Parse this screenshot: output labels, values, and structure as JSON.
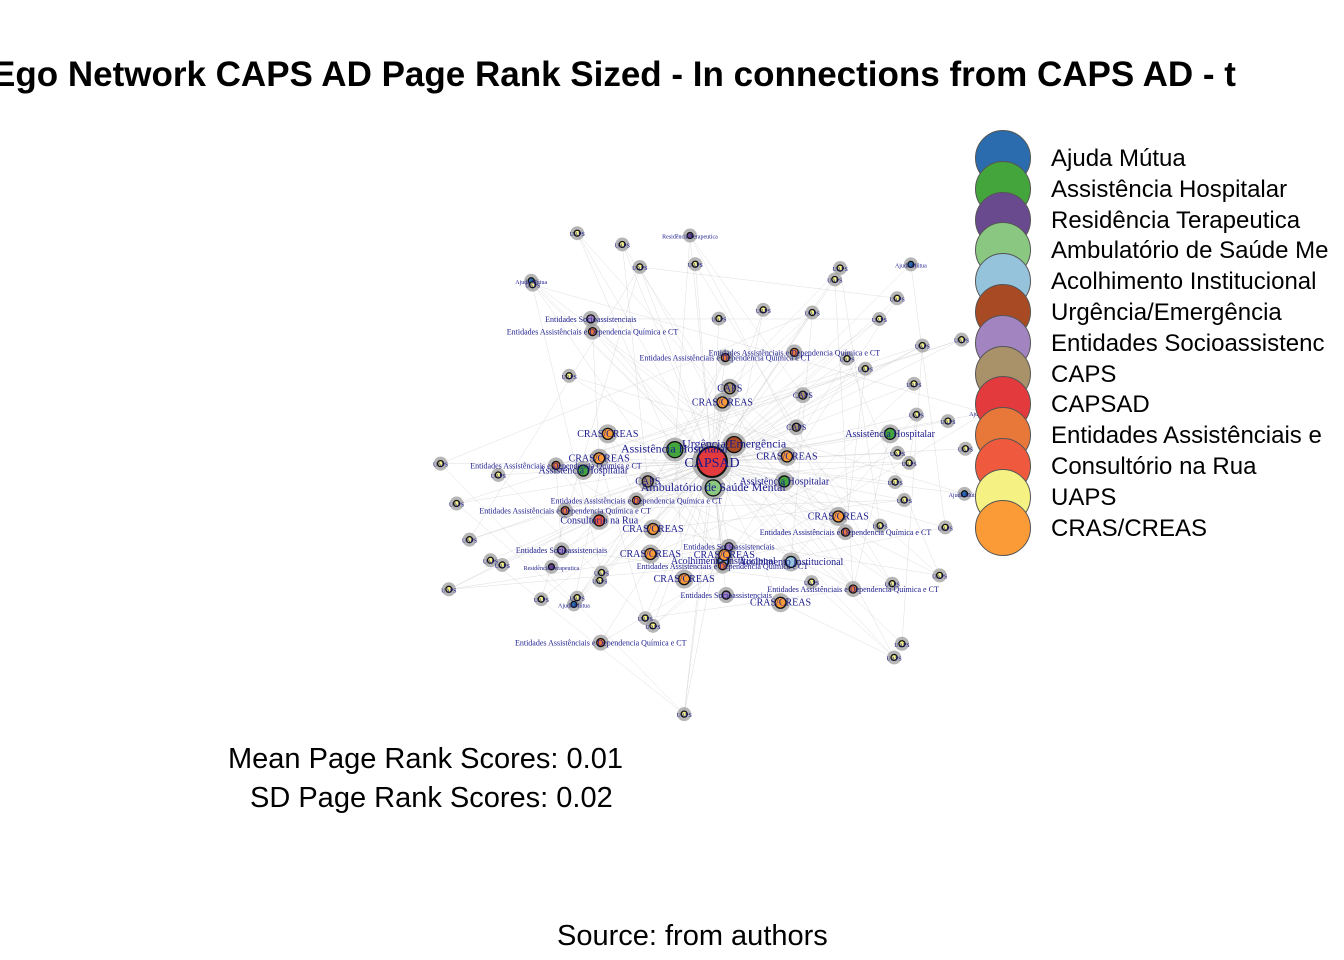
{
  "title": "Ego Network CAPS AD Page Rank Sized - In connections from CAPS AD - t",
  "legend": [
    {
      "label": "Ajuda Mútua",
      "color": "#2b6cae"
    },
    {
      "label": "Assistência Hospitalar",
      "color": "#43a53c"
    },
    {
      "label": "Residência Terapeutica",
      "color": "#6a4a8f"
    },
    {
      "label": "Ambulatório de Saúde Me",
      "color": "#8ac882"
    },
    {
      "label": "Acolhimento Institucional",
      "color": "#95c3dc"
    },
    {
      "label": "Urgência/Emergência",
      "color": "#a84b25"
    },
    {
      "label": "Entidades Socioassistenc",
      "color": "#a285c0"
    },
    {
      "label": "CAPS",
      "color": "#a9916a"
    },
    {
      "label": "CAPSAD",
      "color": "#e33a3e"
    },
    {
      "label": "Entidades Assistênciais e",
      "color": "#e8773a"
    },
    {
      "label": "Consultório na Rua",
      "color": "#ef5a3e"
    },
    {
      "label": "UAPS",
      "color": "#f5f283"
    },
    {
      "label": "CRAS/CREAS",
      "color": "#fb9b38"
    }
  ],
  "stats": {
    "mean": "Mean Page Rank Scores: 0.01",
    "sd": "SD Page Rank Scores: 0.02"
  },
  "caption": "Source: from authors",
  "network": {
    "center": {
      "label": "CAPSAD",
      "color": "#e33a3e"
    },
    "nodes": [
      {
        "label": "Assistência Hospitalar",
        "color": "#43a53c",
        "size": 6
      },
      {
        "label": "Ambulatório de Saúde Mental",
        "color": "#8ac882",
        "size": 6
      },
      {
        "label": "CRAS/CREAS",
        "color": "#fb9b38",
        "size": 4
      },
      {
        "label": "Urgência/Emergência",
        "color": "#a84b25",
        "size": 5
      },
      {
        "label": "Consultório na Rua",
        "color": "#ef5a3e",
        "size": 3
      },
      {
        "label": "CAPS",
        "color": "#a9916a",
        "size": 3
      },
      {
        "label": "CRAS/CREAS",
        "color": "#fb9b38",
        "size": 3
      },
      {
        "label": "Acolhimento Institucional",
        "color": "#95c3dc",
        "size": 3
      },
      {
        "label": "Acolhimento Institucional",
        "color": "#95c3dc",
        "size": 3
      },
      {
        "label": "Assistência Hospitalar",
        "color": "#43a53c",
        "size": 3
      },
      {
        "label": "Assistência Hospitalar",
        "color": "#43a53c",
        "size": 3
      },
      {
        "label": "Assistência Hospitalar",
        "color": "#43a53c",
        "size": 3
      },
      {
        "label": "CAPS",
        "color": "#a9916a",
        "size": 3
      },
      {
        "label": "CRAS/CREAS",
        "color": "#fb9b38",
        "size": 3
      },
      {
        "label": "CRAS/CREAS",
        "color": "#fb9b38",
        "size": 3
      },
      {
        "label": "CRAS/CREAS",
        "color": "#fb9b38",
        "size": 3
      },
      {
        "label": "CRAS/CREAS",
        "color": "#fb9b38",
        "size": 3
      },
      {
        "label": "CRAS/CREAS",
        "color": "#fb9b38",
        "size": 3
      },
      {
        "label": "CRAS/CREAS",
        "color": "#fb9b38",
        "size": 3
      },
      {
        "label": "CRAS/CREAS",
        "color": "#fb9b38",
        "size": 3
      },
      {
        "label": "CRAS/CREAS",
        "color": "#fb9b38",
        "size": 3
      },
      {
        "label": "CAPS",
        "color": "#a9916a",
        "size": 2
      },
      {
        "label": "CAPS",
        "color": "#a9916a",
        "size": 2
      },
      {
        "label": "Entidades Socioassistenciais",
        "color": "#a285c0",
        "size": 2
      },
      {
        "label": "Entidades Socioassistenciais",
        "color": "#a285c0",
        "size": 2
      },
      {
        "label": "Entidades Socioassistenciais",
        "color": "#a285c0",
        "size": 2
      },
      {
        "label": "Entidades Socioassistenciais",
        "color": "#a285c0",
        "size": 2
      },
      {
        "label": "Entidades Assistênciais e Dependencia Química e CT",
        "color": "#e8773a",
        "size": 2
      },
      {
        "label": "Entidades Assistênciais e Dependencia Química e CT",
        "color": "#e8773a",
        "size": 2
      },
      {
        "label": "Entidades Assistênciais e Dependencia Química e CT",
        "color": "#e8773a",
        "size": 2
      },
      {
        "label": "Entidades Assistênciais e Dependencia Química e CT",
        "color": "#e8773a",
        "size": 2
      },
      {
        "label": "Entidades Assistênciais e Dependencia Química e CT",
        "color": "#e8773a",
        "size": 2
      },
      {
        "label": "Entidades Assistênciais e Dependencia Química e CT",
        "color": "#e8773a",
        "size": 2
      },
      {
        "label": "Entidades Assistênciais e Dependencia Química e CT",
        "color": "#e8773a",
        "size": 2
      },
      {
        "label": "Entidades Assistênciais e Dependencia Química e CT",
        "color": "#e8773a",
        "size": 2
      },
      {
        "label": "Entidades Assistênciais e Dependencia Química e CT",
        "color": "#e8773a",
        "size": 2
      },
      {
        "label": "Entidades Assistênciais e Dependencia Química e CT",
        "color": "#e8773a",
        "size": 2
      },
      {
        "label": "Ajuda Mútua",
        "color": "#2b6cae",
        "size": 1
      },
      {
        "label": "Ajuda Mútua",
        "color": "#2b6cae",
        "size": 1
      },
      {
        "label": "Ajuda Mútua",
        "color": "#2b6cae",
        "size": 1
      },
      {
        "label": "Ajuda Mútua",
        "color": "#2b6cae",
        "size": 1
      },
      {
        "label": "Ajuda Mútua",
        "color": "#2b6cae",
        "size": 1
      },
      {
        "label": "Residência Terapeutica",
        "color": "#6a4a8f",
        "size": 1
      },
      {
        "label": "Residência Terapeutica",
        "color": "#6a4a8f",
        "size": 1
      },
      {
        "label": "UAPS",
        "color": "#f5f283",
        "size": 1
      },
      {
        "label": "UAPS",
        "color": "#f5f283",
        "size": 1
      },
      {
        "label": "UAPS",
        "color": "#f5f283",
        "size": 1
      },
      {
        "label": "UAPS",
        "color": "#f5f283",
        "size": 1
      },
      {
        "label": "UAPS",
        "color": "#f5f283",
        "size": 1
      },
      {
        "label": "UAPS",
        "color": "#f5f283",
        "size": 1
      },
      {
        "label": "UAPS",
        "color": "#f5f283",
        "size": 1
      },
      {
        "label": "UAPS",
        "color": "#f5f283",
        "size": 1
      },
      {
        "label": "UAPS",
        "color": "#f5f283",
        "size": 1
      },
      {
        "label": "UAPS",
        "color": "#f5f283",
        "size": 1
      },
      {
        "label": "UAPS",
        "color": "#f5f283",
        "size": 1
      },
      {
        "label": "UAPS",
        "color": "#f5f283",
        "size": 1
      },
      {
        "label": "UAPS",
        "color": "#f5f283",
        "size": 1
      },
      {
        "label": "UAPS",
        "color": "#f5f283",
        "size": 1
      },
      {
        "label": "UAPS",
        "color": "#f5f283",
        "size": 1
      },
      {
        "label": "UAPS",
        "color": "#f5f283",
        "size": 1
      },
      {
        "label": "UAPS",
        "color": "#f5f283",
        "size": 1
      },
      {
        "label": "UAPS",
        "color": "#f5f283",
        "size": 1
      },
      {
        "label": "UAPS",
        "color": "#f5f283",
        "size": 1
      },
      {
        "label": "UAPS",
        "color": "#f5f283",
        "size": 1
      },
      {
        "label": "UAPS",
        "color": "#f5f283",
        "size": 1
      },
      {
        "label": "UAPS",
        "color": "#f5f283",
        "size": 1
      },
      {
        "label": "UAPS",
        "color": "#f5f283",
        "size": 1
      },
      {
        "label": "UAPS",
        "color": "#f5f283",
        "size": 1
      },
      {
        "label": "UAPS",
        "color": "#f5f283",
        "size": 1
      },
      {
        "label": "UAPS",
        "color": "#f5f283",
        "size": 1
      },
      {
        "label": "UAPS",
        "color": "#f5f283",
        "size": 1
      },
      {
        "label": "UAPS",
        "color": "#f5f283",
        "size": 1
      },
      {
        "label": "UAPS",
        "color": "#f5f283",
        "size": 1
      },
      {
        "label": "UAPS",
        "color": "#f5f283",
        "size": 1
      },
      {
        "label": "UAPS",
        "color": "#f5f283",
        "size": 1
      },
      {
        "label": "UAPS",
        "color": "#f5f283",
        "size": 1
      },
      {
        "label": "UAPS",
        "color": "#f5f283",
        "size": 1
      },
      {
        "label": "UAPS",
        "color": "#f5f283",
        "size": 1
      },
      {
        "label": "UAPS",
        "color": "#f5f283",
        "size": 1
      },
      {
        "label": "UAPS",
        "color": "#f5f283",
        "size": 1
      },
      {
        "label": "UAPS",
        "color": "#f5f283",
        "size": 1
      },
      {
        "label": "UAPS",
        "color": "#f5f283",
        "size": 1
      },
      {
        "label": "UAPS",
        "color": "#f5f283",
        "size": 1
      },
      {
        "label": "UAPS",
        "color": "#f5f283",
        "size": 1
      },
      {
        "label": "UAPS",
        "color": "#f5f283",
        "size": 1
      },
      {
        "label": "UAPS",
        "color": "#f5f283",
        "size": 1
      },
      {
        "label": "UAPS",
        "color": "#f5f283",
        "size": 1
      },
      {
        "label": "UAPS",
        "color": "#f5f283",
        "size": 1
      },
      {
        "label": "UAPS",
        "color": "#f5f283",
        "size": 1
      },
      {
        "label": "UAPS",
        "color": "#f5f283",
        "size": 1
      }
    ]
  }
}
